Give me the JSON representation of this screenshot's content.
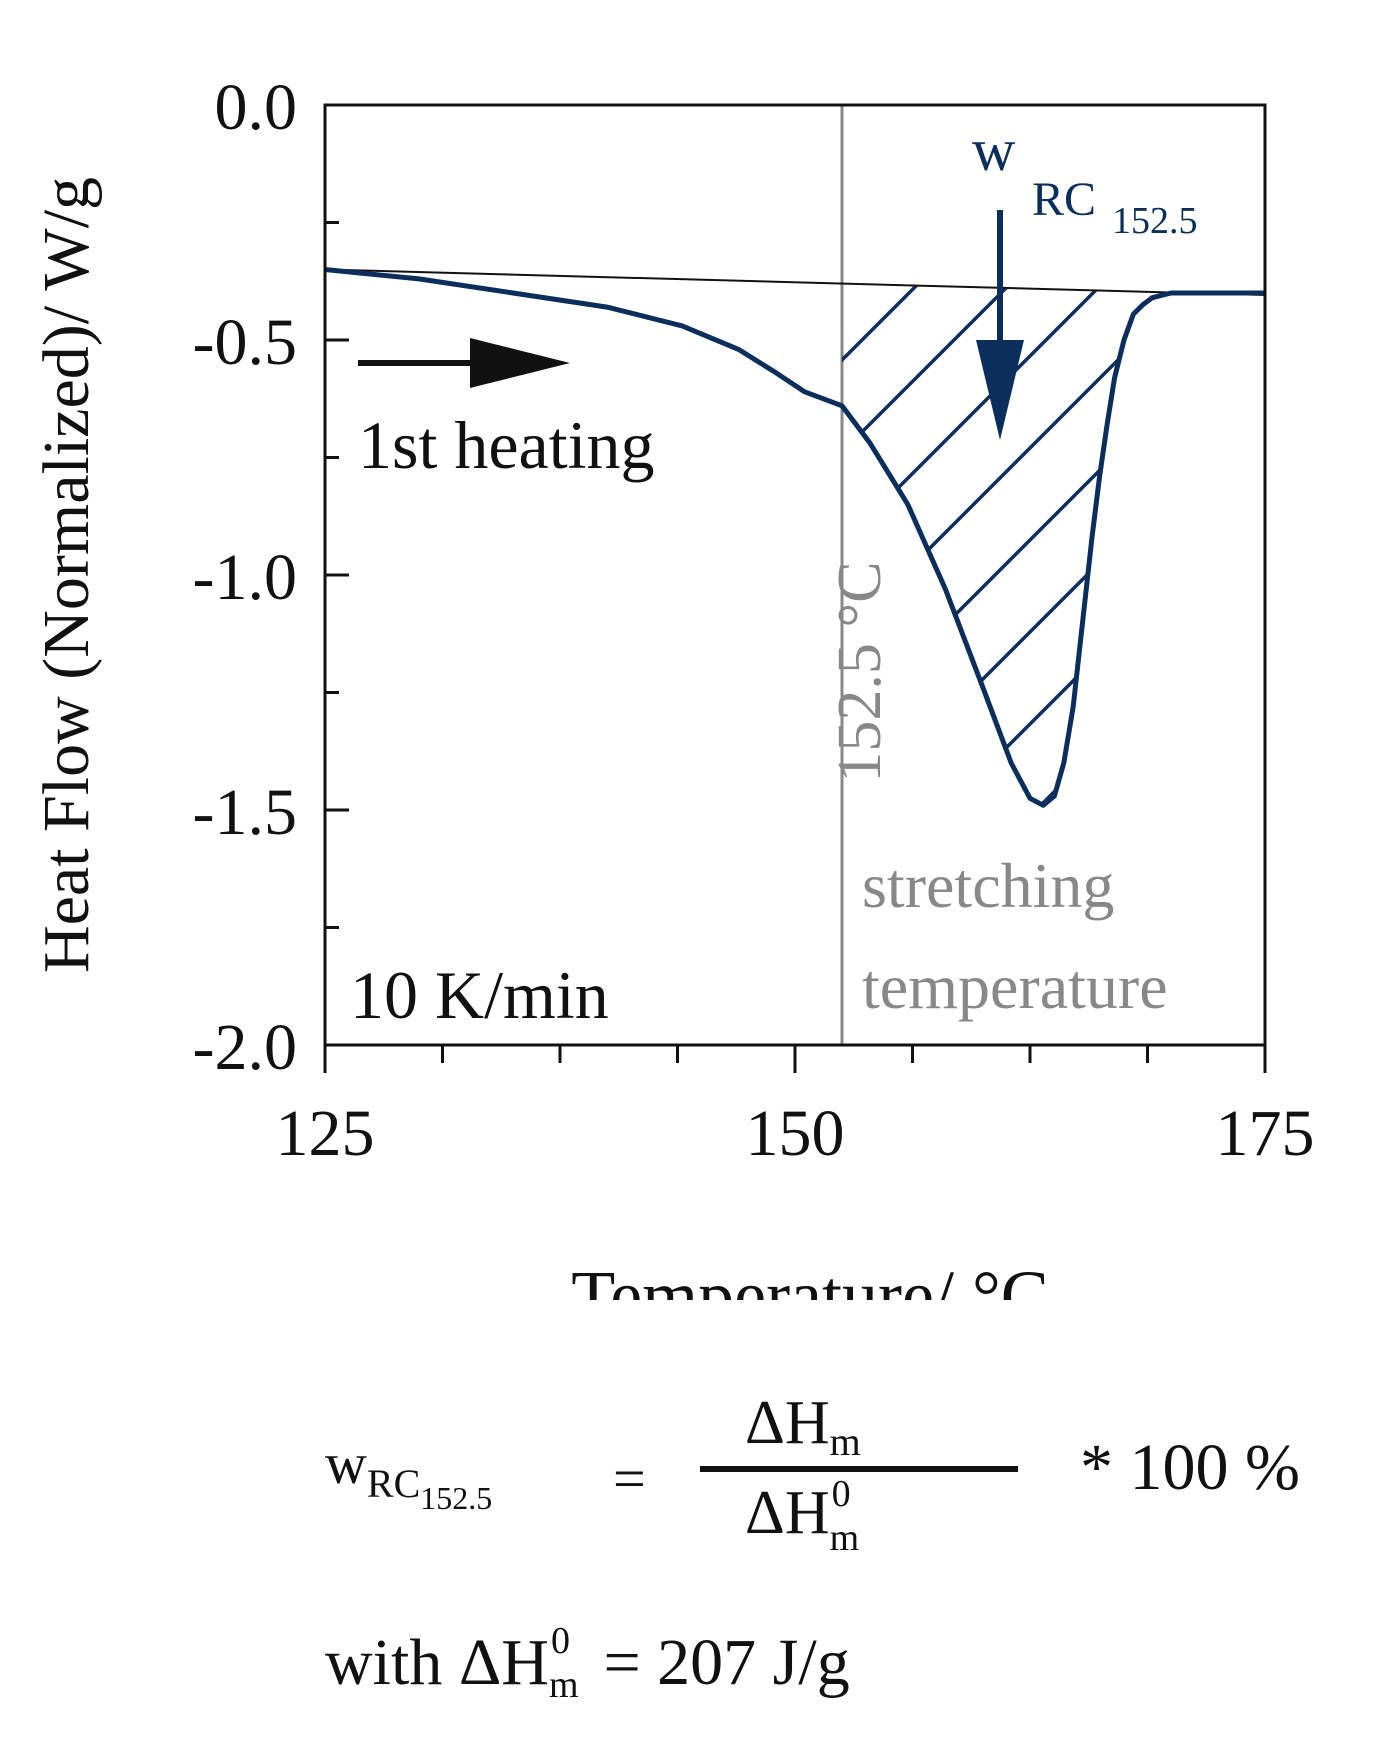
{
  "chart_data": {
    "type": "line",
    "title": "",
    "xlabel": "Temperature/ °C",
    "ylabel": "Heat Flow (Normalized)/ W/g",
    "xlim": [
      125,
      175
    ],
    "ylim": [
      -2.0,
      0.0
    ],
    "x_ticks": [
      "125",
      "150",
      "175"
    ],
    "y_ticks": [
      "0.0",
      "-0.5",
      "-1.0",
      "-1.5",
      "-2.0"
    ],
    "series": [
      {
        "name": "1st heating",
        "color": "#0b2e5c",
        "x": [
          125,
          130,
          135,
          140,
          144,
          147,
          149,
          150.5,
          152.5,
          154,
          156,
          158,
          160,
          161.5,
          162.5,
          163.2,
          163.8,
          164.3,
          164.8,
          165.3,
          165.8,
          166.2,
          166.6,
          167.0,
          167.5,
          168,
          168.5,
          169,
          170,
          172,
          175
        ],
        "y": [
          -0.35,
          -0.37,
          -0.4,
          -0.43,
          -0.47,
          -0.52,
          -0.57,
          -0.61,
          -0.64,
          -0.72,
          -0.85,
          -1.03,
          -1.24,
          -1.4,
          -1.475,
          -1.49,
          -1.47,
          -1.4,
          -1.28,
          -1.1,
          -0.92,
          -0.79,
          -0.68,
          -0.58,
          -0.5,
          -0.445,
          -0.425,
          -0.41,
          -0.4,
          -0.4,
          -0.4
        ]
      }
    ],
    "baseline": {
      "x": [
        125,
        171
      ],
      "y": [
        -0.35,
        -0.4
      ]
    },
    "vertical_line": {
      "x": 152.5,
      "label": "152.5 °C",
      "color": "#888888"
    },
    "hatched_region": {
      "x_from": 152.5,
      "x_to": 171,
      "label_main": "w",
      "label_sub": "RC",
      "label_subsub": "152.5"
    },
    "annotations": {
      "heating": "1st heating",
      "rate": "10 K/min",
      "stretch_line1": "stretching",
      "stretch_line2": "temperature"
    }
  },
  "formula": {
    "lhs_main": "w",
    "lhs_sub": "RC",
    "lhs_subsub": "152.5",
    "equals": "=",
    "numerator": "ΔH",
    "numerator_sub": "m",
    "denominator": "ΔH",
    "denominator_sup": "0",
    "denominator_sub": "m",
    "times": "* 100 %",
    "with_prefix": "with ΔH",
    "with_sup": "0",
    "with_sub": "m",
    "with_suffix": "= 207 J/g"
  }
}
